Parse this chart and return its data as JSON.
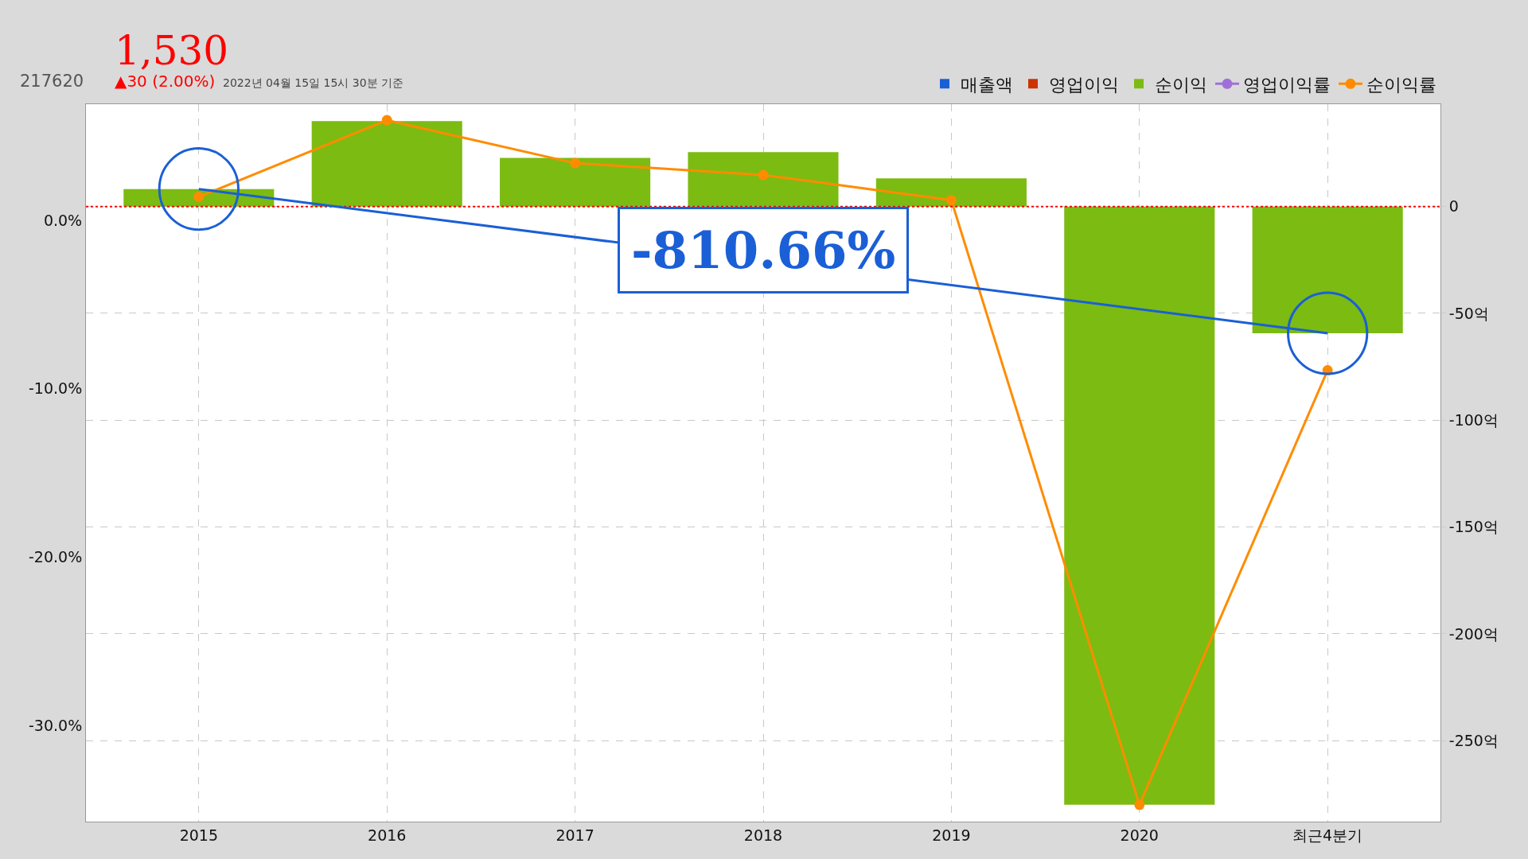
{
  "chart_data": {
    "type": "bar",
    "title": "1,530",
    "subtitle": "▲30 (2.00%)",
    "annotations": [
      "217620",
      "2022년 04월 15일 15시 30분 기준",
      "-810.66%"
    ],
    "categories": [
      "2015",
      "2016",
      "2017",
      "2018",
      "2019",
      "2020",
      "최근4분기"
    ],
    "series": [
      {
        "name": "매출액",
        "color": "#1a5fd6",
        "axis": "y2",
        "values": [
          null,
          null,
          null,
          null,
          null,
          null,
          null
        ]
      },
      {
        "name": "영업이익",
        "color": "#cc3300",
        "axis": "y2",
        "values": [
          null,
          null,
          null,
          null,
          null,
          null,
          null
        ]
      },
      {
        "name": "순이익",
        "color": "#7cbb12",
        "axis": "y2",
        "values": [
          8.2,
          40,
          22.8,
          25.5,
          13.2,
          -280,
          -59.3
        ]
      },
      {
        "name": "영업이익률",
        "color": "#a070d8",
        "type": "line",
        "values": [
          null,
          null,
          null,
          null,
          null,
          null,
          null
        ]
      },
      {
        "name": "순이익률",
        "color": "#ff8c00",
        "type": "line",
        "values": [
          1.4,
          5.95,
          3.4,
          2.7,
          1.2,
          -34.7,
          -8.9
        ]
      }
    ],
    "ylim": [
      -35.7,
      6.9
    ],
    "yticks": [
      {
        "value": 0,
        "label": "0.0%"
      },
      {
        "value": -10,
        "label": "-10.0%"
      },
      {
        "value": -20,
        "label": "-20.0%"
      },
      {
        "value": -30,
        "label": "-30.0%"
      }
    ],
    "y2lim": [
      -287.9,
      47.9
    ],
    "y2ticks": [
      0,
      {
        "value": -50,
        "label": "-50억"
      },
      {
        "value": -100,
        "label": "-100억"
      },
      {
        "value": -150,
        "label": "-150억"
      },
      {
        "value": -200,
        "label": "-200억"
      },
      {
        "value": -250,
        "label": "-250억"
      }
    ],
    "ref_lines": [
      {
        "axis": "y2",
        "value": 0,
        "color": "#ff0000",
        "line_style": "dotted"
      }
    ],
    "grid": true,
    "legend": "top right",
    "marker": "circle"
  }
}
